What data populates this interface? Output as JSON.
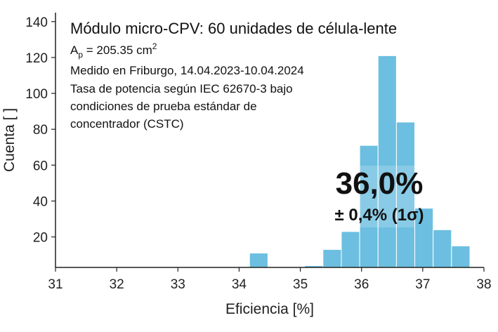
{
  "chart_data": {
    "type": "bar",
    "xlabel": "Eficiencia [%]",
    "ylabel": "Cuenta [ ]",
    "xlim": [
      31,
      38
    ],
    "ylim": [
      3,
      145
    ],
    "xticks": [
      "31",
      "32",
      "33",
      "34",
      "35",
      "36",
      "37",
      "38"
    ],
    "yticks": [
      "20",
      "40",
      "60",
      "80",
      "100",
      "120",
      "140"
    ],
    "bar_color": "#6cbfe0",
    "bins": [
      {
        "start": 34.17,
        "end": 34.47,
        "count": 11
      },
      {
        "start": 35.07,
        "end": 35.37,
        "count": 4
      },
      {
        "start": 35.37,
        "end": 35.67,
        "count": 13
      },
      {
        "start": 35.67,
        "end": 35.97,
        "count": 23
      },
      {
        "start": 35.97,
        "end": 36.27,
        "count": 71
      },
      {
        "start": 36.27,
        "end": 36.57,
        "count": 121
      },
      {
        "start": 36.57,
        "end": 36.87,
        "count": 84
      },
      {
        "start": 36.87,
        "end": 37.17,
        "count": 36
      },
      {
        "start": 37.17,
        "end": 37.47,
        "count": 24
      },
      {
        "start": 37.47,
        "end": 37.77,
        "count": 15
      }
    ],
    "annotation": {
      "title": "Módulo micro-CPV: 60 unidades de célula-lente",
      "area_prefix": "A",
      "area_sub": "p",
      "area_value": " = 205.35 cm",
      "area_sup": "2",
      "lines": [
        "Medido en Friburgo, 14.04.2023-10.04.2024",
        "Tasa de potencia según IEC 62670-3 bajo",
        "condiciones de prueba estándar de",
        "concentrador (CSTC)"
      ]
    },
    "highlight": {
      "value": "36,0%",
      "uncertainty": "± 0,4% (1σ)"
    }
  }
}
